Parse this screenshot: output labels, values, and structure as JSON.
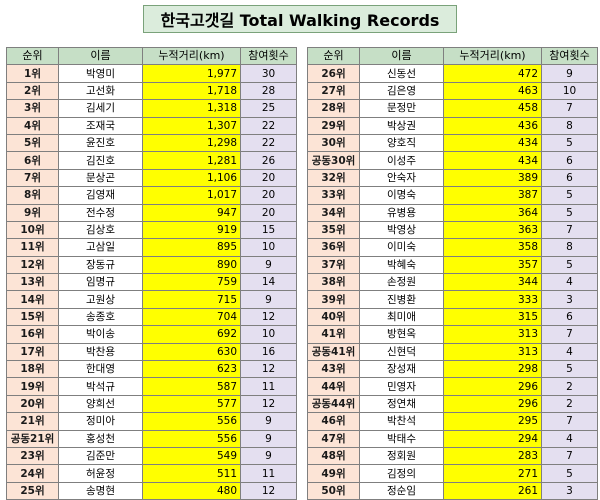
{
  "title": "한국고갯길 Total Walking Records",
  "headers": {
    "rank": "순위",
    "name": "이름",
    "distance": "누적거리(km)",
    "count": "참여횟수"
  },
  "left_rows": [
    {
      "rank": "1위",
      "name": "박영미",
      "distance": "1,977",
      "count": "30"
    },
    {
      "rank": "2위",
      "name": "고선화",
      "distance": "1,718",
      "count": "28"
    },
    {
      "rank": "3위",
      "name": "김세기",
      "distance": "1,318",
      "count": "25"
    },
    {
      "rank": "4위",
      "name": "조재국",
      "distance": "1,307",
      "count": "22"
    },
    {
      "rank": "5위",
      "name": "윤진호",
      "distance": "1,298",
      "count": "22"
    },
    {
      "rank": "6위",
      "name": "김진호",
      "distance": "1,281",
      "count": "26"
    },
    {
      "rank": "7위",
      "name": "문상곤",
      "distance": "1,106",
      "count": "20"
    },
    {
      "rank": "8위",
      "name": "김영재",
      "distance": "1,017",
      "count": "20"
    },
    {
      "rank": "9위",
      "name": "전수정",
      "distance": "947",
      "count": "20"
    },
    {
      "rank": "10위",
      "name": "김상호",
      "distance": "919",
      "count": "15"
    },
    {
      "rank": "11위",
      "name": "고삼일",
      "distance": "895",
      "count": "10"
    },
    {
      "rank": "12위",
      "name": "장동규",
      "distance": "890",
      "count": "9"
    },
    {
      "rank": "13위",
      "name": "임명규",
      "distance": "759",
      "count": "14"
    },
    {
      "rank": "14위",
      "name": "고원상",
      "distance": "715",
      "count": "9"
    },
    {
      "rank": "15위",
      "name": "송종호",
      "distance": "704",
      "count": "12"
    },
    {
      "rank": "16위",
      "name": "박이송",
      "distance": "692",
      "count": "10"
    },
    {
      "rank": "17위",
      "name": "박찬용",
      "distance": "630",
      "count": "16"
    },
    {
      "rank": "18위",
      "name": "한대영",
      "distance": "623",
      "count": "12"
    },
    {
      "rank": "19위",
      "name": "박석규",
      "distance": "587",
      "count": "11"
    },
    {
      "rank": "20위",
      "name": "양희선",
      "distance": "577",
      "count": "12"
    },
    {
      "rank": "21위",
      "name": "정미아",
      "distance": "556",
      "count": "9"
    },
    {
      "rank": "공동21위",
      "name": "홍성천",
      "distance": "556",
      "count": "9"
    },
    {
      "rank": "23위",
      "name": "김준만",
      "distance": "549",
      "count": "9"
    },
    {
      "rank": "24위",
      "name": "허윤정",
      "distance": "511",
      "count": "11"
    },
    {
      "rank": "25위",
      "name": "송명현",
      "distance": "480",
      "count": "12"
    }
  ],
  "right_rows": [
    {
      "rank": "26위",
      "name": "신동선",
      "distance": "472",
      "count": "9"
    },
    {
      "rank": "27위",
      "name": "김은영",
      "distance": "463",
      "count": "10"
    },
    {
      "rank": "28위",
      "name": "문정만",
      "distance": "458",
      "count": "7"
    },
    {
      "rank": "29위",
      "name": "박상권",
      "distance": "436",
      "count": "8"
    },
    {
      "rank": "30위",
      "name": "양호직",
      "distance": "434",
      "count": "5"
    },
    {
      "rank": "공동30위",
      "name": "이성주",
      "distance": "434",
      "count": "6"
    },
    {
      "rank": "32위",
      "name": "안숙자",
      "distance": "389",
      "count": "6"
    },
    {
      "rank": "33위",
      "name": "이명숙",
      "distance": "387",
      "count": "5"
    },
    {
      "rank": "34위",
      "name": "유병용",
      "distance": "364",
      "count": "5"
    },
    {
      "rank": "35위",
      "name": "박영상",
      "distance": "363",
      "count": "7"
    },
    {
      "rank": "36위",
      "name": "이미숙",
      "distance": "358",
      "count": "8"
    },
    {
      "rank": "37위",
      "name": "박혜숙",
      "distance": "357",
      "count": "5"
    },
    {
      "rank": "38위",
      "name": "손정원",
      "distance": "344",
      "count": "4"
    },
    {
      "rank": "39위",
      "name": "진병환",
      "distance": "333",
      "count": "3"
    },
    {
      "rank": "40위",
      "name": "최미애",
      "distance": "315",
      "count": "6"
    },
    {
      "rank": "41위",
      "name": "방현옥",
      "distance": "313",
      "count": "7"
    },
    {
      "rank": "공동41위",
      "name": "신현덕",
      "distance": "313",
      "count": "4"
    },
    {
      "rank": "43위",
      "name": "장성재",
      "distance": "298",
      "count": "5"
    },
    {
      "rank": "44위",
      "name": "민영자",
      "distance": "296",
      "count": "2"
    },
    {
      "rank": "공동44위",
      "name": "정연채",
      "distance": "296",
      "count": "2"
    },
    {
      "rank": "46위",
      "name": "박찬석",
      "distance": "295",
      "count": "7"
    },
    {
      "rank": "47위",
      "name": "박태수",
      "distance": "294",
      "count": "4"
    },
    {
      "rank": "48위",
      "name": "정회원",
      "distance": "283",
      "count": "7"
    },
    {
      "rank": "49위",
      "name": "김정의",
      "distance": "271",
      "count": "5"
    },
    {
      "rank": "50위",
      "name": "정순임",
      "distance": "261",
      "count": "3"
    }
  ]
}
